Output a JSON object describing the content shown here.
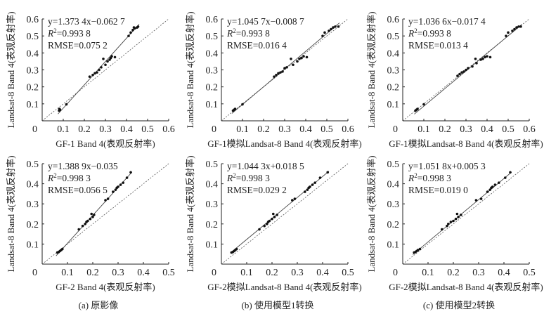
{
  "chart_data": [
    {
      "type": "scatter",
      "panel": "a",
      "xlabel": "GF-1 Band 4(表观反射率)",
      "ylabel": "Landsat-8 Band 4(表观反射率)",
      "xlim": [
        0,
        0.6
      ],
      "ylim": [
        0,
        0.6
      ],
      "xticks": [
        "0.1",
        "0.2",
        "0.3",
        "0.4",
        "0.5",
        "0.6"
      ],
      "yticks": [
        "0.1",
        "0.2",
        "0.3",
        "0.4",
        "0.5",
        "0.6"
      ],
      "origin": "0",
      "equation": "y=1.373 4x−0.062 7",
      "slope": 1.3734,
      "intercept": -0.0627,
      "r2_label": "R",
      "r2_sup": "2",
      "r2_value": "=0.993 8",
      "rmse": "RMSE=0.075 2",
      "points": [
        [
          0.08,
          0.06
        ],
        [
          0.085,
          0.065
        ],
        [
          0.082,
          0.07
        ],
        [
          0.115,
          0.097
        ],
        [
          0.225,
          0.26
        ],
        [
          0.24,
          0.27
        ],
        [
          0.25,
          0.28
        ],
        [
          0.26,
          0.285
        ],
        [
          0.27,
          0.3
        ],
        [
          0.28,
          0.315
        ],
        [
          0.29,
          0.365
        ],
        [
          0.3,
          0.33
        ],
        [
          0.31,
          0.35
        ],
        [
          0.32,
          0.36
        ],
        [
          0.325,
          0.37
        ],
        [
          0.33,
          0.38
        ],
        [
          0.345,
          0.375
        ],
        [
          0.41,
          0.5
        ],
        [
          0.42,
          0.52
        ],
        [
          0.43,
          0.535
        ],
        [
          0.44,
          0.545
        ],
        [
          0.45,
          0.55
        ],
        [
          0.455,
          0.555
        ],
        [
          0.435,
          0.55
        ]
      ]
    },
    {
      "type": "scatter",
      "panel": "b",
      "xlabel": "GF-1模拟Landsat-8 Band 4(表观反射率)",
      "ylabel": "Landsat-8 Band 4(表观反射率)",
      "xlim": [
        0,
        0.6
      ],
      "ylim": [
        0,
        0.6
      ],
      "xticks": [
        "0.1",
        "0.2",
        "0.3",
        "0.4",
        "0.5",
        "0.6"
      ],
      "yticks": [
        "0.1",
        "0.2",
        "0.3",
        "0.4",
        "0.5",
        "0.6"
      ],
      "origin": "0",
      "equation": "y=1.045 7x−0.008 7",
      "slope": 1.0457,
      "intercept": -0.0087,
      "r2_label": "R",
      "r2_sup": "2",
      "r2_value": "=0.993 8",
      "rmse": "RMSE=0.016 4",
      "points": [
        [
          0.055,
          0.06
        ],
        [
          0.06,
          0.065
        ],
        [
          0.065,
          0.07
        ],
        [
          0.1,
          0.097
        ],
        [
          0.25,
          0.26
        ],
        [
          0.26,
          0.27
        ],
        [
          0.27,
          0.28
        ],
        [
          0.28,
          0.285
        ],
        [
          0.29,
          0.29
        ],
        [
          0.3,
          0.31
        ],
        [
          0.31,
          0.315
        ],
        [
          0.33,
          0.365
        ],
        [
          0.34,
          0.33
        ],
        [
          0.36,
          0.35
        ],
        [
          0.37,
          0.365
        ],
        [
          0.38,
          0.37
        ],
        [
          0.39,
          0.38
        ],
        [
          0.405,
          0.375
        ],
        [
          0.48,
          0.5
        ],
        [
          0.49,
          0.52
        ],
        [
          0.51,
          0.53
        ],
        [
          0.52,
          0.54
        ],
        [
          0.53,
          0.55
        ],
        [
          0.54,
          0.555
        ],
        [
          0.555,
          0.555
        ]
      ]
    },
    {
      "type": "scatter",
      "panel": "c",
      "xlabel": "GF-1模拟Landsat-8 Band 4(表观反射率)",
      "ylabel": "Landsat-8 Band 4(表观反射率)",
      "xlim": [
        0,
        0.6
      ],
      "ylim": [
        0,
        0.6
      ],
      "xticks": [
        "0.1",
        "0.2",
        "0.3",
        "0.4",
        "0.5",
        "0.6"
      ],
      "yticks": [
        "0.1",
        "0.2",
        "0.3",
        "0.4",
        "0.5",
        "0.6"
      ],
      "origin": "0",
      "equation": "y=1.036 6x−0.017 4",
      "slope": 1.0366,
      "intercept": -0.0174,
      "r2_label": "R",
      "r2_sup": "2",
      "r2_value": "=0.993 8",
      "rmse": "RMSE=0.013 4",
      "points": [
        [
          0.06,
          0.06
        ],
        [
          0.065,
          0.065
        ],
        [
          0.07,
          0.07
        ],
        [
          0.1,
          0.097
        ],
        [
          0.26,
          0.265
        ],
        [
          0.27,
          0.275
        ],
        [
          0.28,
          0.285
        ],
        [
          0.29,
          0.29
        ],
        [
          0.3,
          0.3
        ],
        [
          0.31,
          0.31
        ],
        [
          0.33,
          0.32
        ],
        [
          0.345,
          0.365
        ],
        [
          0.35,
          0.34
        ],
        [
          0.37,
          0.36
        ],
        [
          0.38,
          0.365
        ],
        [
          0.39,
          0.375
        ],
        [
          0.4,
          0.38
        ],
        [
          0.415,
          0.375
        ],
        [
          0.49,
          0.5
        ],
        [
          0.5,
          0.52
        ],
        [
          0.52,
          0.53
        ],
        [
          0.53,
          0.54
        ],
        [
          0.54,
          0.55
        ],
        [
          0.55,
          0.555
        ],
        [
          0.56,
          0.555
        ]
      ]
    },
    {
      "type": "scatter",
      "panel": "d",
      "xlabel": "GF-2 Band 4(表观反射率)",
      "ylabel": "Landsat-8 Band 4(表观反射率)",
      "xlim": [
        0,
        0.5
      ],
      "ylim": [
        0,
        0.5
      ],
      "xticks": [
        "0.1",
        "0.2",
        "0.3",
        "0.4",
        "0.5"
      ],
      "yticks": [
        "0.1",
        "0.2",
        "0.3",
        "0.4",
        "0.5"
      ],
      "origin": "0",
      "equation": "y=1.388 9x−0.035",
      "slope": 1.3889,
      "intercept": -0.035,
      "r2_label": "R",
      "r2_sup": "2",
      "r2_value": "=0.998 3",
      "rmse": "RMSE=0.056 5",
      "points": [
        [
          0.06,
          0.058
        ],
        [
          0.065,
          0.06
        ],
        [
          0.07,
          0.065
        ],
        [
          0.075,
          0.07
        ],
        [
          0.08,
          0.075
        ],
        [
          0.145,
          0.173
        ],
        [
          0.16,
          0.19
        ],
        [
          0.17,
          0.2
        ],
        [
          0.175,
          0.21
        ],
        [
          0.18,
          0.215
        ],
        [
          0.19,
          0.225
        ],
        [
          0.195,
          0.25
        ],
        [
          0.2,
          0.235
        ],
        [
          0.205,
          0.245
        ],
        [
          0.25,
          0.318
        ],
        [
          0.26,
          0.325
        ],
        [
          0.28,
          0.36
        ],
        [
          0.29,
          0.37
        ],
        [
          0.295,
          0.38
        ],
        [
          0.3,
          0.385
        ],
        [
          0.31,
          0.395
        ],
        [
          0.32,
          0.405
        ],
        [
          0.335,
          0.43
        ],
        [
          0.35,
          0.457
        ]
      ]
    },
    {
      "type": "scatter",
      "panel": "e",
      "xlabel": "GF-2模拟Landsat-8 Band 4(表观反射率)",
      "ylabel": "Landsat-8 Band 4(表观反射率)",
      "xlim": [
        0,
        0.5
      ],
      "ylim": [
        0,
        0.5
      ],
      "xticks": [
        "0.1",
        "0.2",
        "0.3",
        "0.4",
        "0.5"
      ],
      "yticks": [
        "0.1",
        "0.2",
        "0.3",
        "0.4",
        "0.5"
      ],
      "origin": "0",
      "equation": "y=1.044 3x+0.018 5",
      "slope": 1.0443,
      "intercept": 0.0185,
      "r2_label": "R",
      "r2_sup": "2",
      "r2_value": "=0.998 3",
      "rmse": "RMSE=0.029 2",
      "points": [
        [
          0.04,
          0.058
        ],
        [
          0.045,
          0.06
        ],
        [
          0.05,
          0.065
        ],
        [
          0.055,
          0.07
        ],
        [
          0.06,
          0.075
        ],
        [
          0.15,
          0.173
        ],
        [
          0.17,
          0.19
        ],
        [
          0.18,
          0.2
        ],
        [
          0.185,
          0.21
        ],
        [
          0.19,
          0.215
        ],
        [
          0.2,
          0.225
        ],
        [
          0.205,
          0.25
        ],
        [
          0.21,
          0.235
        ],
        [
          0.22,
          0.245
        ],
        [
          0.28,
          0.318
        ],
        [
          0.29,
          0.325
        ],
        [
          0.33,
          0.36
        ],
        [
          0.34,
          0.37
        ],
        [
          0.345,
          0.38
        ],
        [
          0.35,
          0.385
        ],
        [
          0.36,
          0.395
        ],
        [
          0.37,
          0.405
        ],
        [
          0.39,
          0.43
        ],
        [
          0.42,
          0.457
        ]
      ]
    },
    {
      "type": "scatter",
      "panel": "f",
      "xlabel": "GF-2模拟Landsat-8 Band 4(表观反射率)",
      "ylabel": "Landsat-8 Band 4(表观反射率)",
      "xlim": [
        0,
        0.5
      ],
      "ylim": [
        0,
        0.5
      ],
      "xticks": [
        "0.1",
        "0.2",
        "0.3",
        "0.4",
        "0.5"
      ],
      "yticks": [
        "0.1",
        "0.2",
        "0.3",
        "0.4",
        "0.5"
      ],
      "origin": "0",
      "equation": "y=1.051 8x+0.005 3",
      "slope": 1.0518,
      "intercept": 0.0053,
      "r2_label": "R",
      "r2_sup": "2",
      "r2_value": "=0.998 3",
      "rmse": "RMSE=0.019 0",
      "points": [
        [
          0.045,
          0.058
        ],
        [
          0.05,
          0.06
        ],
        [
          0.055,
          0.065
        ],
        [
          0.06,
          0.07
        ],
        [
          0.068,
          0.075
        ],
        [
          0.155,
          0.173
        ],
        [
          0.175,
          0.19
        ],
        [
          0.18,
          0.2
        ],
        [
          0.19,
          0.21
        ],
        [
          0.2,
          0.215
        ],
        [
          0.21,
          0.225
        ],
        [
          0.215,
          0.25
        ],
        [
          0.22,
          0.235
        ],
        [
          0.23,
          0.245
        ],
        [
          0.29,
          0.318
        ],
        [
          0.31,
          0.325
        ],
        [
          0.335,
          0.36
        ],
        [
          0.345,
          0.37
        ],
        [
          0.35,
          0.38
        ],
        [
          0.355,
          0.385
        ],
        [
          0.365,
          0.395
        ],
        [
          0.38,
          0.405
        ],
        [
          0.405,
          0.43
        ],
        [
          0.425,
          0.457
        ]
      ]
    }
  ],
  "captions": [
    "(a) 原影像",
    "(b) 使用模型1转换",
    "(c) 使用模型2转换"
  ]
}
